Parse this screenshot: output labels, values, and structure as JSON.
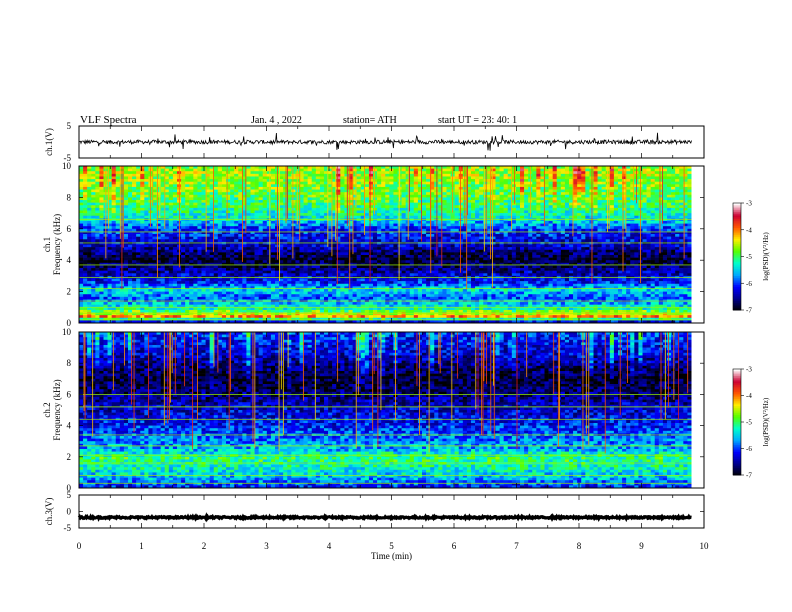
{
  "header": {
    "title": "VLF  Spectra",
    "date": "Jan. 4  , 2022",
    "station": "station= ATH",
    "start": "start  UT  =   23: 40: 1"
  },
  "chart_data": [
    {
      "type": "line",
      "name": "ch1-waveform",
      "ylabel": "ch.1(V)",
      "ylim": [
        -5,
        5
      ],
      "yticks": [
        "5",
        "-5"
      ],
      "xlim": [
        0,
        10
      ],
      "x_end": 9.8,
      "baseline": 0,
      "noise_amplitude": 0.6,
      "spike_amplitude": 2.5
    },
    {
      "type": "heatmap",
      "name": "ch1-spectrogram",
      "ylabel": "ch.1\nFrequency  (kHz)",
      "ylabel_lines": [
        "ch.1",
        "Frequency  (kHz)"
      ],
      "ylim": [
        0,
        10
      ],
      "yticks": [
        "0",
        "2",
        "4",
        "6",
        "8",
        "10"
      ],
      "xlim": [
        0,
        10
      ],
      "x_end": 9.8,
      "zlabel": "log(PSD)(V²/Hz)",
      "zlim": [
        -7,
        -3
      ],
      "zticks": [
        "-3",
        "-4",
        "-5",
        "-6",
        "-7"
      ],
      "band_profile": [
        {
          "f": 0.0,
          "z": -6.8
        },
        {
          "f": 0.4,
          "z": -4.0
        },
        {
          "f": 0.9,
          "z": -5.2
        },
        {
          "f": 1.6,
          "z": -5.9
        },
        {
          "f": 2.1,
          "z": -5.4
        },
        {
          "f": 2.6,
          "z": -6.1
        },
        {
          "f": 3.2,
          "z": -6.4
        },
        {
          "f": 4.0,
          "z": -6.9
        },
        {
          "f": 5.0,
          "z": -6.3
        },
        {
          "f": 6.0,
          "z": -6.0
        },
        {
          "f": 6.6,
          "z": -5.4
        },
        {
          "f": 7.5,
          "z": -5.0
        },
        {
          "f": 8.5,
          "z": -4.8
        },
        {
          "f": 9.5,
          "z": -4.6
        },
        {
          "f": 10.0,
          "z": -4.7
        }
      ],
      "lines_khz": [
        0.2,
        0.6,
        1.0,
        1.4,
        2.2,
        2.9,
        3.7,
        5.1,
        5.8,
        6.6
      ]
    },
    {
      "type": "heatmap",
      "name": "ch2-spectrogram",
      "ylabel": "ch.2\nFrequency  (kHz)",
      "ylabel_lines": [
        "ch.2",
        "Frequency  (kHz)"
      ],
      "ylim": [
        0,
        10
      ],
      "yticks": [
        "0",
        "2",
        "4",
        "6",
        "8",
        "10"
      ],
      "xlim": [
        0,
        10
      ],
      "x_end": 9.8,
      "zlabel": "log(PSD)(V²/Hz)",
      "zlim": [
        -7,
        -3
      ],
      "zticks": [
        "-3",
        "-4",
        "-5",
        "-6",
        "-7"
      ],
      "band_profile": [
        {
          "f": 0.0,
          "z": -6.2
        },
        {
          "f": 0.6,
          "z": -5.6
        },
        {
          "f": 1.2,
          "z": -5.3
        },
        {
          "f": 1.9,
          "z": -5.0
        },
        {
          "f": 2.5,
          "z": -5.6
        },
        {
          "f": 3.2,
          "z": -5.8
        },
        {
          "f": 4.0,
          "z": -6.1
        },
        {
          "f": 5.0,
          "z": -6.3
        },
        {
          "f": 6.0,
          "z": -6.6
        },
        {
          "f": 7.0,
          "z": -6.9
        },
        {
          "f": 8.0,
          "z": -6.5
        },
        {
          "f": 9.0,
          "z": -6.2
        },
        {
          "f": 10.0,
          "z": -6.0
        }
      ],
      "lines_khz": [
        0.3,
        0.8,
        1.6,
        2.1,
        2.7,
        3.4,
        4.4,
        5.2,
        6.0
      ]
    },
    {
      "type": "line",
      "name": "ch3-waveform",
      "ylabel": "ch.3(V)",
      "ylim": [
        -5,
        5
      ],
      "yticks": [
        "5",
        "0",
        "-5"
      ],
      "xlim": [
        0,
        10
      ],
      "x_end": 9.8,
      "baseline": -1.8,
      "noise_amplitude": 0.25,
      "spike_amplitude": 0
    }
  ],
  "xaxis": {
    "label": "Time  (min)",
    "ticks": [
      "0",
      "1",
      "2",
      "3",
      "4",
      "5",
      "6",
      "7",
      "8",
      "9",
      "10"
    ]
  },
  "colorscale": [
    "#000000",
    "#00008b",
    "#0000ff",
    "#00aaff",
    "#00ffcc",
    "#55ff00",
    "#ffee00",
    "#ff5500",
    "#cc0033",
    "#ffffff"
  ]
}
